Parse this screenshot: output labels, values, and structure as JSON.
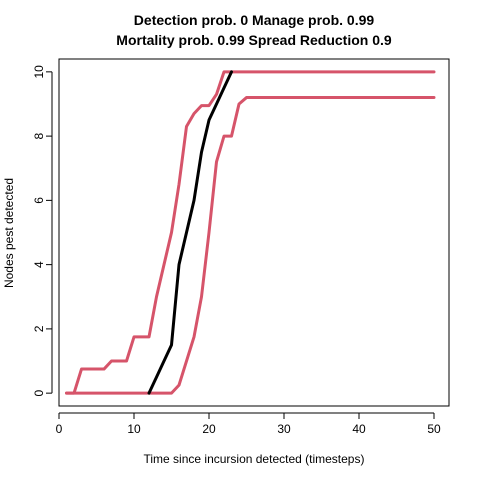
{
  "chart_data": {
    "type": "line",
    "title_line1": "Detection prob. 0 Manage prob. 0.99",
    "title_line2": "Mortality prob. 0.99 Spread Reduction 0.9",
    "xlabel": "Time since incursion detected (timesteps)",
    "ylabel": "Nodes pest detected",
    "xlim": [
      0,
      52
    ],
    "ylim": [
      -0.4,
      10.4
    ],
    "x_ticks": [
      0,
      10,
      20,
      30,
      40,
      50
    ],
    "y_ticks": [
      0,
      2,
      4,
      6,
      8,
      10
    ],
    "grid": false,
    "colors": {
      "median": "#000000",
      "bounds": "#d6546a"
    },
    "series": [
      {
        "role": "median",
        "color": "#000000",
        "points": [
          [
            12,
            0
          ],
          [
            13,
            0.5
          ],
          [
            14,
            1
          ],
          [
            15,
            1.5
          ],
          [
            16,
            4
          ],
          [
            17,
            5
          ],
          [
            18,
            6
          ],
          [
            19,
            7.5
          ],
          [
            20,
            8.5
          ],
          [
            21,
            9
          ],
          [
            22,
            9.5
          ],
          [
            23,
            10
          ]
        ]
      },
      {
        "role": "upper",
        "color": "#d6546a",
        "points": [
          [
            1,
            0
          ],
          [
            2,
            0
          ],
          [
            3,
            0.75
          ],
          [
            4,
            0.75
          ],
          [
            5,
            0.75
          ],
          [
            6,
            0.75
          ],
          [
            7,
            1
          ],
          [
            8,
            1
          ],
          [
            9,
            1
          ],
          [
            10,
            1.75
          ],
          [
            11,
            1.75
          ],
          [
            12,
            1.75
          ],
          [
            13,
            3
          ],
          [
            14,
            4
          ],
          [
            15,
            5
          ],
          [
            16,
            6.5
          ],
          [
            17,
            8.3
          ],
          [
            18,
            8.7
          ],
          [
            19,
            8.95
          ],
          [
            20,
            8.95
          ],
          [
            21,
            9.3
          ],
          [
            22,
            10
          ],
          [
            30,
            10
          ],
          [
            40,
            10
          ],
          [
            50,
            10
          ]
        ]
      },
      {
        "role": "lower",
        "color": "#d6546a",
        "points": [
          [
            1,
            0
          ],
          [
            5,
            0
          ],
          [
            10,
            0
          ],
          [
            14,
            0
          ],
          [
            15,
            0
          ],
          [
            16,
            0.25
          ],
          [
            17,
            1
          ],
          [
            18,
            1.75
          ],
          [
            19,
            3
          ],
          [
            20,
            5
          ],
          [
            21,
            7.2
          ],
          [
            22,
            8
          ],
          [
            23,
            8
          ],
          [
            24,
            9
          ],
          [
            25,
            9.2
          ],
          [
            30,
            9.2
          ],
          [
            40,
            9.2
          ],
          [
            50,
            9.2
          ]
        ]
      }
    ]
  }
}
